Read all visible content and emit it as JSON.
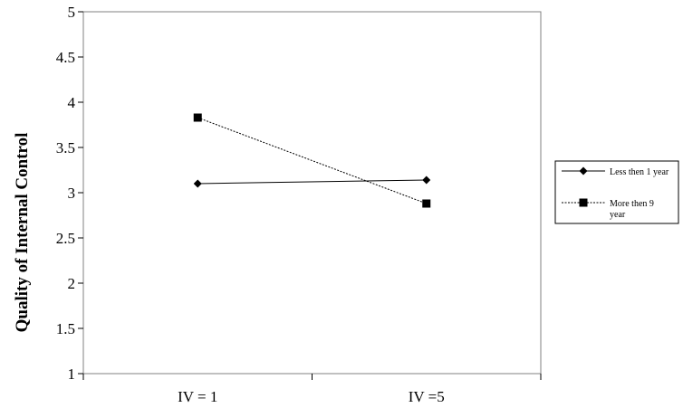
{
  "chart_data": {
    "type": "line",
    "title": "",
    "xlabel": "",
    "ylabel": "Quality of Internal Control",
    "categories": [
      "IV = 1",
      "IV =5"
    ],
    "ylim": [
      1,
      5
    ],
    "yticks": [
      "1",
      "1.5",
      "2",
      "2.5",
      "3",
      "3.5",
      "4",
      "4.5",
      "5"
    ],
    "grid": false,
    "legend_position": "right",
    "series": [
      {
        "name": "Less then 1 year",
        "values": [
          3.1,
          3.14
        ],
        "marker": "diamond",
        "line": "solid",
        "color": "#000000"
      },
      {
        "name": "More then 9 year",
        "name_lines": [
          "More then 9",
          "year"
        ],
        "values": [
          3.83,
          2.88
        ],
        "marker": "square",
        "line": "dotted",
        "color": "#000000"
      }
    ]
  }
}
